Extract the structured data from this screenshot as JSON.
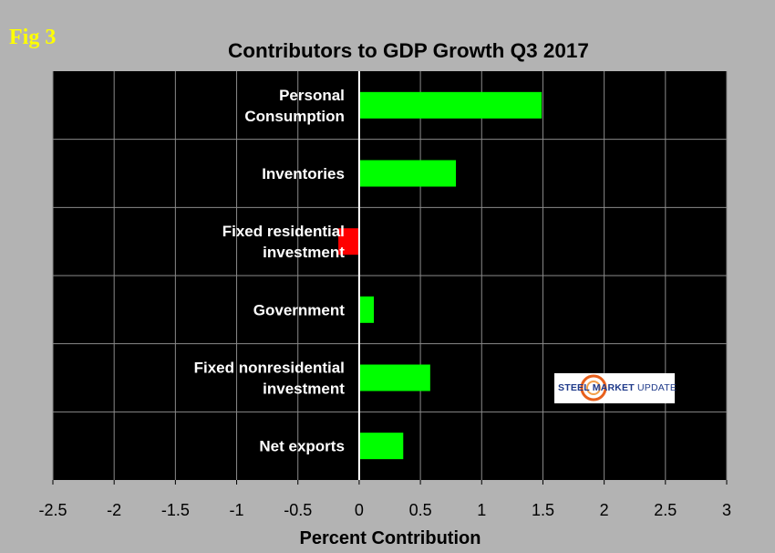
{
  "figure_label": "Fig 3",
  "logo": {
    "brand": "STEEL MARKET",
    "suffix": "UPDATE"
  },
  "colors": {
    "positive": "#00ff00",
    "negative": "#ff0000",
    "plot_bg": "#000000",
    "page_bg": "#b3b3b3",
    "axis": "#ffffff",
    "title": "#000000",
    "category_text": "#ffffff"
  },
  "chart_data": {
    "type": "bar",
    "orientation": "horizontal",
    "title": "Contributors to GDP Growth Q3 2017",
    "xlabel": "Percent Contribution",
    "ylabel": "",
    "xlim": [
      -2.5,
      3
    ],
    "x_ticks": [
      -2.5,
      -2,
      -1.5,
      -1,
      -0.5,
      0,
      0.5,
      1,
      1.5,
      2,
      2.5,
      3
    ],
    "grid": true,
    "categories": [
      [
        "Personal",
        "Consumption"
      ],
      [
        "Inventories"
      ],
      [
        "Fixed residential",
        "investment"
      ],
      [
        "Government"
      ],
      [
        "Fixed nonresidential",
        "investment"
      ],
      [
        "Net exports"
      ]
    ],
    "values": [
      1.49,
      0.79,
      -0.17,
      0.12,
      0.58,
      0.36
    ]
  }
}
